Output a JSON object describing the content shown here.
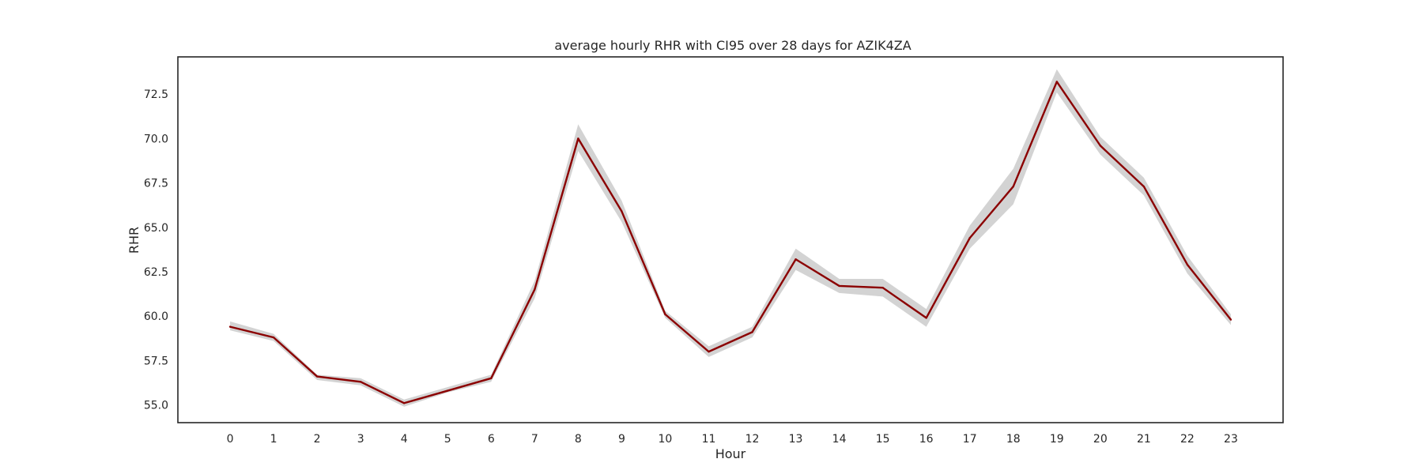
{
  "chart_data": {
    "type": "line",
    "title": "average hourly RHR with CI95 over 28 days for AZIK4ZA",
    "xlabel": "Hour",
    "ylabel": "RHR",
    "x": [
      0,
      1,
      2,
      3,
      4,
      5,
      6,
      7,
      8,
      9,
      10,
      11,
      12,
      13,
      14,
      15,
      16,
      17,
      18,
      19,
      20,
      21,
      22,
      23
    ],
    "series": [
      {
        "values": [
          59.4,
          58.8,
          56.6,
          56.3,
          55.1,
          55.8,
          56.5,
          61.5,
          70.0,
          65.9,
          60.1,
          58.0,
          59.1,
          63.2,
          61.7,
          61.6,
          59.9,
          64.4,
          67.3,
          73.2,
          69.6,
          67.3,
          62.9,
          59.8
        ],
        "ci_low": [
          59.2,
          58.6,
          56.4,
          56.1,
          54.9,
          55.7,
          56.3,
          61.0,
          69.3,
          65.3,
          59.9,
          57.7,
          58.8,
          62.6,
          61.3,
          61.1,
          59.4,
          63.8,
          66.3,
          72.6,
          69.1,
          66.8,
          62.4,
          59.5
        ],
        "ci_high": [
          59.7,
          59.0,
          56.7,
          56.5,
          55.3,
          56.0,
          56.7,
          62.0,
          70.8,
          66.5,
          60.3,
          58.3,
          59.4,
          63.8,
          62.1,
          62.1,
          60.4,
          65.1,
          68.3,
          73.9,
          70.1,
          67.8,
          63.4,
          60.1
        ],
        "color": "#8b0000",
        "ci_color": "#d3d3d3"
      }
    ],
    "xlim": [
      -1.2,
      24.2
    ],
    "ylim": [
      54.0,
      74.6
    ],
    "yticks": [
      "55.0",
      "57.5",
      "60.0",
      "62.5",
      "65.0",
      "67.5",
      "70.0",
      "72.5"
    ],
    "xticks": [
      "0",
      "1",
      "2",
      "3",
      "4",
      "5",
      "6",
      "7",
      "8",
      "9",
      "10",
      "11",
      "12",
      "13",
      "14",
      "15",
      "16",
      "17",
      "18",
      "19",
      "20",
      "21",
      "22",
      "23"
    ],
    "grid": false,
    "legend": "none"
  }
}
